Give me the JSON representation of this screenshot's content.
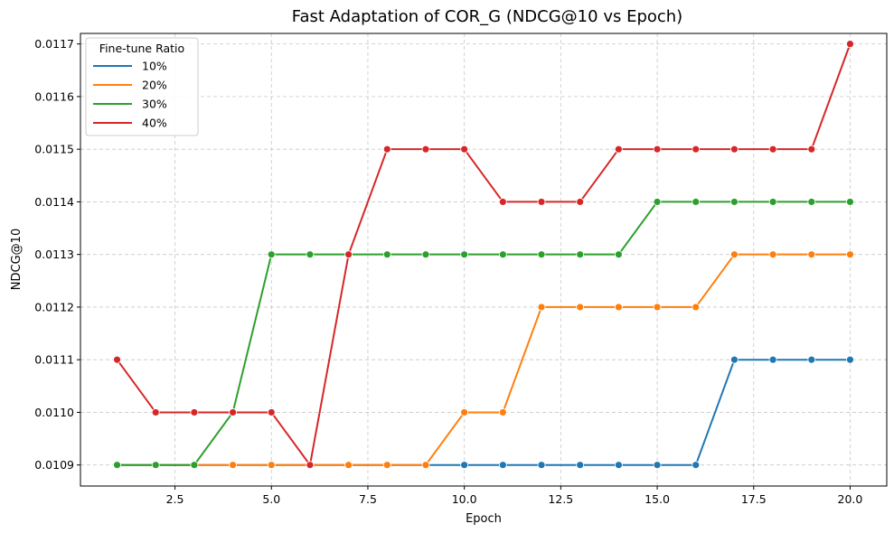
{
  "chart_data": {
    "type": "line",
    "title": "Fast Adaptation of COR_G (NDCG@10 vs Epoch)",
    "xlabel": "Epoch",
    "ylabel": "NDCG@10",
    "xlim": [
      0.05,
      20.95
    ],
    "ylim": [
      0.01086,
      0.01172
    ],
    "xticks": [
      2.5,
      5.0,
      7.5,
      10.0,
      12.5,
      15.0,
      17.5,
      20.0
    ],
    "xtick_labels": [
      "2.5",
      "5.0",
      "7.5",
      "10.0",
      "12.5",
      "15.0",
      "17.5",
      "20.0"
    ],
    "yticks": [
      0.0109,
      0.011,
      0.0111,
      0.0112,
      0.0113,
      0.0114,
      0.0115,
      0.0116,
      0.0117
    ],
    "ytick_labels": [
      "0.0109",
      "0.0110",
      "0.0111",
      "0.0112",
      "0.0113",
      "0.0114",
      "0.0115",
      "0.0116",
      "0.0117"
    ],
    "grid": true,
    "legend_title": "Fine-tune Ratio",
    "legend_position": "top-left",
    "x": [
      1,
      2,
      3,
      4,
      5,
      6,
      7,
      8,
      9,
      10,
      11,
      12,
      13,
      14,
      15,
      16,
      17,
      18,
      19,
      20
    ],
    "series": [
      {
        "name": "10%",
        "color": "#1f77b4",
        "values": [
          0.0109,
          0.0109,
          0.0109,
          0.0109,
          0.0109,
          0.0109,
          0.0109,
          0.0109,
          0.0109,
          0.0109,
          0.0109,
          0.0109,
          0.0109,
          0.0109,
          0.0109,
          0.0109,
          0.0111,
          0.0111,
          0.0111,
          0.0111
        ]
      },
      {
        "name": "20%",
        "color": "#ff7f0e",
        "values": [
          0.0109,
          0.0109,
          0.0109,
          0.0109,
          0.0109,
          0.0109,
          0.0109,
          0.0109,
          0.0109,
          0.011,
          0.011,
          0.0112,
          0.0112,
          0.0112,
          0.0112,
          0.0112,
          0.0113,
          0.0113,
          0.0113,
          0.0113
        ]
      },
      {
        "name": "30%",
        "color": "#2ca02c",
        "values": [
          0.0109,
          0.0109,
          0.0109,
          0.011,
          0.0113,
          0.0113,
          0.0113,
          0.0113,
          0.0113,
          0.0113,
          0.0113,
          0.0113,
          0.0113,
          0.0113,
          0.0114,
          0.0114,
          0.0114,
          0.0114,
          0.0114,
          0.0114
        ]
      },
      {
        "name": "40%",
        "color": "#d62728",
        "values": [
          0.0111,
          0.011,
          0.011,
          0.011,
          0.011,
          0.0109,
          0.0113,
          0.0115,
          0.0115,
          0.0115,
          0.0114,
          0.0114,
          0.0114,
          0.0115,
          0.0115,
          0.0115,
          0.0115,
          0.0115,
          0.0115,
          0.0117
        ]
      }
    ]
  }
}
